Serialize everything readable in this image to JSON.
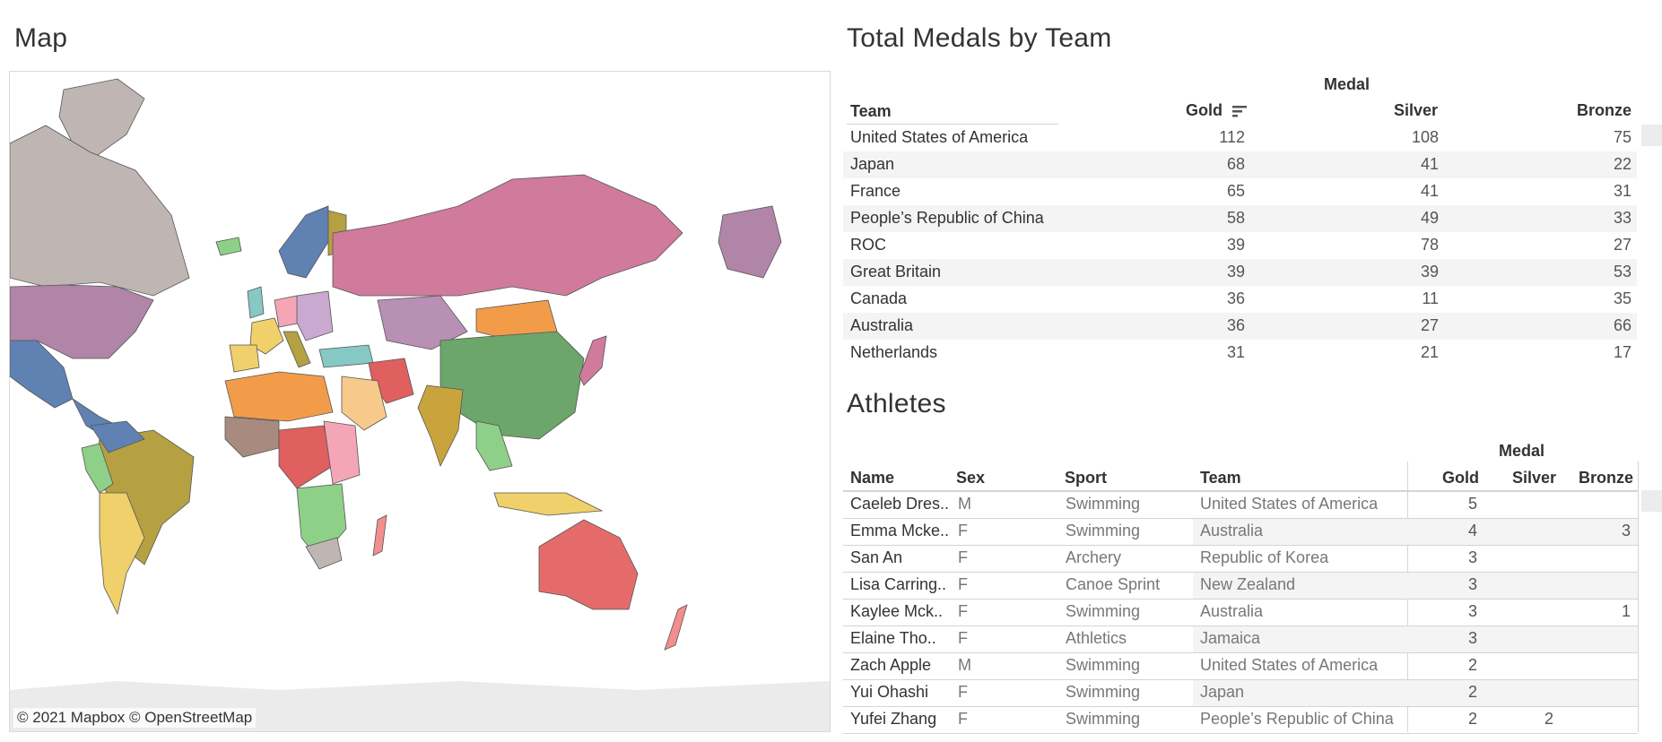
{
  "map": {
    "title": "Map",
    "attribution": "© 2021 Mapbox  © OpenStreetMap"
  },
  "medals": {
    "title": "Total Medals by Team",
    "group_header": "Medal",
    "col_team": "Team",
    "col_gold": "Gold",
    "col_silver": "Silver",
    "col_bronze": "Bronze",
    "rows": [
      {
        "team": "United States of America",
        "gold": "112",
        "silver": "108",
        "bronze": "75"
      },
      {
        "team": "Japan",
        "gold": "68",
        "silver": "41",
        "bronze": "22"
      },
      {
        "team": "France",
        "gold": "65",
        "silver": "41",
        "bronze": "31"
      },
      {
        "team": "People’s Republic of China",
        "gold": "58",
        "silver": "49",
        "bronze": "33"
      },
      {
        "team": "ROC",
        "gold": "39",
        "silver": "78",
        "bronze": "27"
      },
      {
        "team": "Great Britain",
        "gold": "39",
        "silver": "39",
        "bronze": "53"
      },
      {
        "team": "Canada",
        "gold": "36",
        "silver": "11",
        "bronze": "35"
      },
      {
        "team": "Australia",
        "gold": "36",
        "silver": "27",
        "bronze": "66"
      },
      {
        "team": "Netherlands",
        "gold": "31",
        "silver": "21",
        "bronze": "17"
      }
    ]
  },
  "athletes": {
    "title": "Athletes",
    "group_header": "Medal",
    "col_name": "Name",
    "col_sex": "Sex",
    "col_sport": "Sport",
    "col_team": "Team",
    "col_gold": "Gold",
    "col_silver": "Silver",
    "col_bronze": "Bronze",
    "rows": [
      {
        "name": "Caeleb Dres..",
        "sex": "M",
        "sport": "Swimming",
        "team": "United States of America",
        "gold": "5",
        "silver": "",
        "bronze": ""
      },
      {
        "name": "Emma Mcke..",
        "sex": "F",
        "sport": "Swimming",
        "team": "Australia",
        "gold": "4",
        "silver": "",
        "bronze": "3"
      },
      {
        "name": "San An",
        "sex": "F",
        "sport": "Archery",
        "team": "Republic of Korea",
        "gold": "3",
        "silver": "",
        "bronze": ""
      },
      {
        "name": "Lisa Carring..",
        "sex": "F",
        "sport": "Canoe Sprint",
        "team": "New Zealand",
        "gold": "3",
        "silver": "",
        "bronze": ""
      },
      {
        "name": "Kaylee Mck..",
        "sex": "F",
        "sport": "Swimming",
        "team": "Australia",
        "gold": "3",
        "silver": "",
        "bronze": "1"
      },
      {
        "name": "Elaine Tho..",
        "sex": "F",
        "sport": "Athletics",
        "team": "Jamaica",
        "gold": "3",
        "silver": "",
        "bronze": ""
      },
      {
        "name": "Zach Apple",
        "sex": "M",
        "sport": "Swimming",
        "team": "United States of America",
        "gold": "2",
        "silver": "",
        "bronze": ""
      },
      {
        "name": "Yui Ohashi",
        "sex": "F",
        "sport": "Swimming",
        "team": "Japan",
        "gold": "2",
        "silver": "",
        "bronze": ""
      },
      {
        "name": "Yufei Zhang",
        "sex": "F",
        "sport": "Swimming",
        "team": "People’s Republic of China",
        "gold": "2",
        "silver": "2",
        "bronze": ""
      }
    ]
  },
  "icons": {
    "sort": "sort-descending-icon"
  },
  "colors": {
    "band": "#f4f4f4",
    "text": "#333333",
    "number": "#555555",
    "map_land_unmatched": "#bfb6b4",
    "map_ocean": "#ffffff"
  }
}
